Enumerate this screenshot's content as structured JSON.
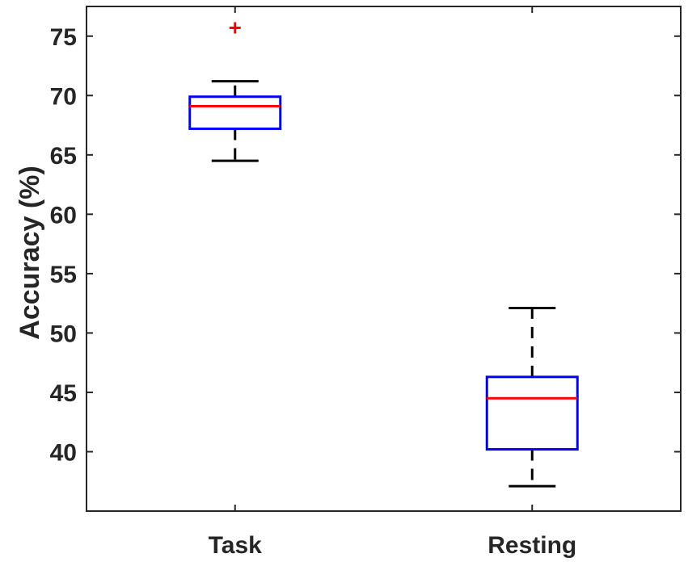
{
  "chart_data": {
    "type": "boxplot",
    "title": "",
    "xlabel": "",
    "ylabel": "Accuracy (%)",
    "ylim": [
      35,
      77.5
    ],
    "yticks": [
      40,
      45,
      50,
      55,
      60,
      65,
      70,
      75
    ],
    "grid": false,
    "categories": [
      "Task",
      "Resting"
    ],
    "boxes": [
      {
        "category": "Task",
        "whisker_low": 64.5,
        "q1": 67.2,
        "median": 69.1,
        "q3": 69.9,
        "whisker_high": 71.2,
        "outliers": [
          75.7
        ]
      },
      {
        "category": "Resting",
        "whisker_low": 37.1,
        "q1": 40.2,
        "median": 44.5,
        "q3": 46.3,
        "whisker_high": 52.1,
        "outliers": []
      }
    ],
    "colors": {
      "box": "#0000ff",
      "median": "#ff0000",
      "whisker": "#000000",
      "outlier": "#ff0000",
      "axis": "#262626"
    }
  }
}
